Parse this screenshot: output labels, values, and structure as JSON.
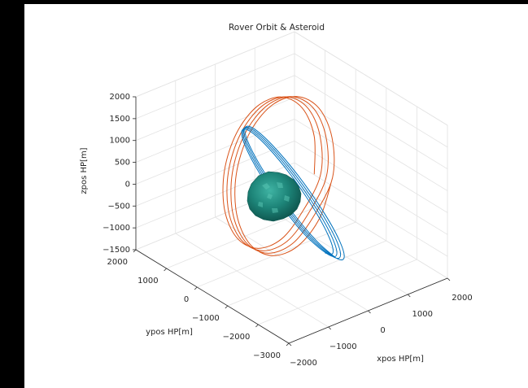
{
  "chart_data": {
    "type": "line3d",
    "title": "Rover Orbit & Asteroid",
    "xlabel": "xpos HP[m]",
    "ylabel": "ypos HP[m]",
    "zlabel": "zpos HP[m]",
    "xlim": [
      -2000,
      2000
    ],
    "ylim": [
      -3000,
      2000
    ],
    "zlim": [
      -1500,
      2000
    ],
    "xticks": [
      {
        "value": -2000,
        "label": "−2000"
      },
      {
        "value": -1000,
        "label": "−1000"
      },
      0,
      1000,
      2000
    ],
    "yticks": [
      {
        "value": -3000,
        "label": "−3000"
      },
      {
        "value": -2000,
        "label": "−2000"
      },
      {
        "value": -1000,
        "label": "−1000"
      },
      0,
      1000,
      2000
    ],
    "zticks": [
      {
        "value": -1500,
        "label": "−1500"
      },
      {
        "value": -1000,
        "label": "−1000"
      },
      {
        "value": -500,
        "label": "−500"
      },
      0,
      500,
      1000,
      1500,
      2000
    ],
    "grid": true,
    "series": [
      {
        "color": "#D95319",
        "x": [
          540,
          604,
          480,
          200,
          -160,
          -504,
          -740,
          -804,
          -680,
          -400,
          -40,
          304,
          635,
          697,
          568,
          280,
          -88,
          -437,
          -675,
          -737,
          -608,
          -320,
          48,
          397,
          730,
          790,
          655,
          360,
          -15,
          -370,
          -610,
          -670,
          -535,
          -240,
          135,
          490,
          825,
          883,
          743,
          440,
          57,
          -303,
          -545,
          -603,
          -463,
          -160,
          223,
          583,
          825
        ],
        "y": [
          -540,
          -454,
          -220,
          100,
          420,
          654,
          740,
          654,
          420,
          100,
          -220,
          -454,
          -615,
          -527,
          -288,
          40,
          368,
          607,
          695,
          607,
          368,
          40,
          -288,
          -527,
          -690,
          -600,
          -355,
          -20,
          315,
          560,
          650,
          560,
          315,
          -20,
          -355,
          -600,
          -765,
          -673,
          -423,
          -80,
          263,
          513,
          605,
          513,
          263,
          -80,
          -423,
          -673,
          -765
        ],
        "z": [
          370,
          1180,
          1773,
          1990,
          1773,
          1180,
          370,
          -440,
          -1033,
          -1250,
          -1033,
          -440,
          340,
          1165,
          1769,
          1990,
          1769,
          1165,
          340,
          -485,
          -1089,
          -1310,
          -1089,
          -485,
          310,
          1150,
          1765,
          1990,
          1765,
          1150,
          310,
          -530,
          -1145,
          -1370,
          -1145,
          -530,
          280,
          1135,
          1761,
          1990,
          1761,
          1135,
          280,
          -575,
          -1201,
          -1430,
          -1201,
          -575,
          280
        ]
      },
      {
        "color": "#0072BD",
        "x": [
          1150,
          1023,
          675,
          200,
          -275,
          -623,
          -750,
          -623,
          -275,
          200,
          675,
          1023,
          1240,
          1109,
          750,
          260,
          -230,
          -589,
          -720,
          -589,
          -230,
          260,
          750,
          1109,
          1330,
          1195,
          825,
          320,
          -185,
          -555,
          -690,
          -555,
          -185,
          320,
          825,
          1195,
          1420,
          1281,
          900,
          380,
          -140,
          -521,
          -660,
          -521,
          -140,
          380,
          900,
          1281,
          1420
        ],
        "y": [
          -100,
          -525,
          -836,
          -950,
          -836,
          -525,
          -100,
          325,
          636,
          750,
          636,
          325,
          -100,
          -535,
          -853,
          -970,
          -853,
          -535,
          -100,
          335,
          653,
          770,
          653,
          335,
          -100,
          -545,
          -871,
          -990,
          -871,
          -545,
          -100,
          345,
          671,
          790,
          671,
          345,
          -100,
          -555,
          -888,
          -1010,
          -888,
          -555,
          -100,
          355,
          688,
          810,
          688,
          355,
          -100
        ],
        "z": [
          -1850,
          -1616,
          -975,
          -100,
          775,
          1416,
          1650,
          1416,
          775,
          -100,
          -975,
          -1616,
          -1920,
          -1680,
          -1025,
          -130,
          765,
          1420,
          1660,
          1420,
          765,
          -130,
          -1025,
          -1680,
          -1990,
          -1745,
          -1075,
          -160,
          755,
          1425,
          1670,
          1425,
          755,
          -160,
          -1075,
          -1745,
          -2060,
          -1809,
          -1125,
          -190,
          745,
          1429,
          1680,
          1429,
          745,
          -190,
          -1125,
          -1809,
          -2060
        ]
      }
    ]
  }
}
